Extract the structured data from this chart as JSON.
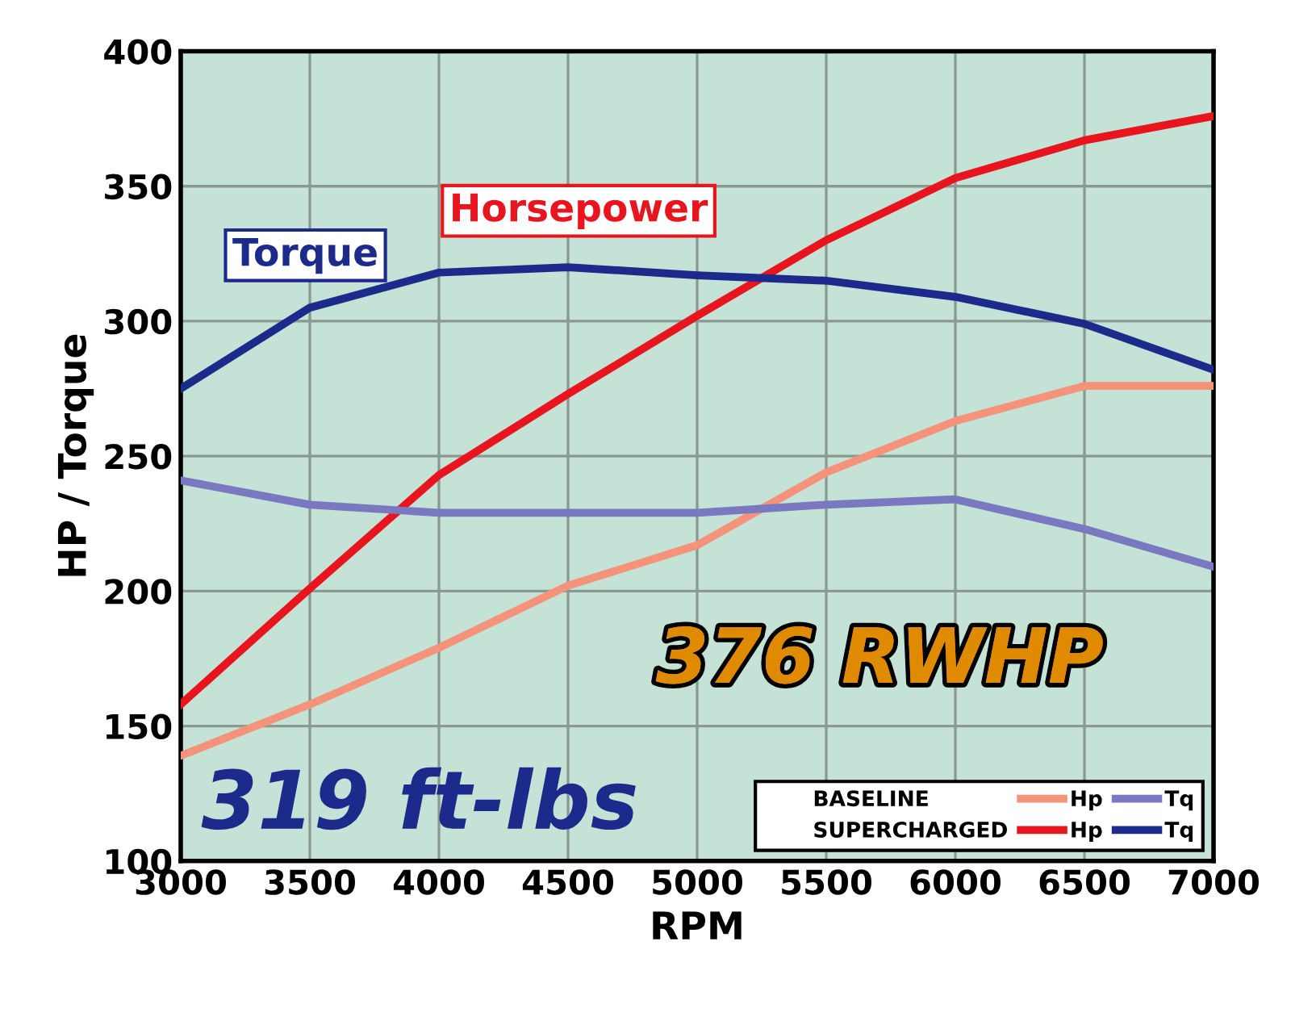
{
  "chart_data": {
    "type": "line",
    "xlabel": "RPM",
    "ylabel": "HP / Torque",
    "x": [
      3000,
      3500,
      4000,
      4500,
      5000,
      5500,
      6000,
      6500,
      7000
    ],
    "series": [
      {
        "name": "Hp",
        "color": "#f4937a",
        "values": [
          139,
          158,
          179,
          202,
          217,
          244,
          263,
          276,
          276
        ]
      },
      {
        "name": "Hp",
        "color": "#e8141e",
        "values": [
          158,
          201,
          243,
          273,
          302,
          330,
          353,
          367,
          376
        ]
      },
      {
        "name": "Tq",
        "color": "#7a78c0",
        "values": [
          241,
          232,
          229,
          229,
          229,
          232,
          234,
          223,
          209
        ]
      },
      {
        "name": "Tq",
        "color": "#1c2a8c",
        "values": [
          275,
          305,
          318,
          320,
          317,
          315,
          309,
          299,
          282
        ]
      }
    ],
    "annotations": [
      "Torque",
      "Horsepower",
      "376 RWHP",
      "319 ft-lbs",
      "BASELINE",
      "SUPERCHARGED"
    ],
    "xlim": [
      3000,
      7000
    ],
    "xticks": [
      3000,
      3500,
      4000,
      4500,
      5000,
      5500,
      6000,
      6500,
      7000
    ],
    "ylim": [
      100,
      400
    ],
    "yticks": [
      100,
      150,
      200,
      250,
      300,
      350,
      400
    ],
    "grid": true,
    "legend": "bottom right",
    "marker": "none",
    "line_style": "solid"
  }
}
